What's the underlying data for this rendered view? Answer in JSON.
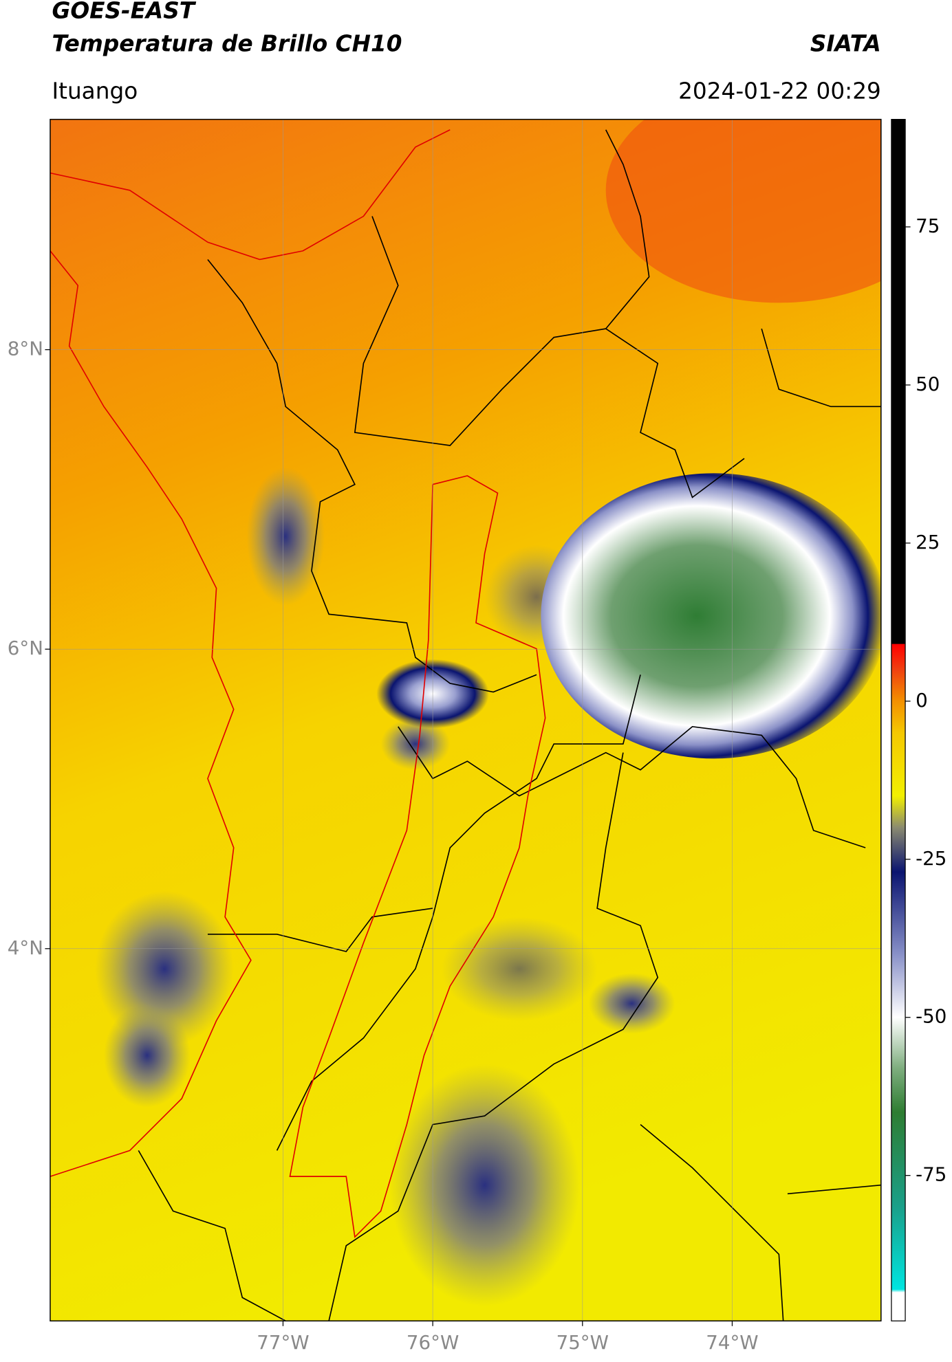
{
  "header": {
    "title": "GOES-EAST",
    "subtitle": "Temperatura de Brillo CH10",
    "source": "SIATA",
    "location": "Ituango",
    "datetime": "2024-01-22 00:29"
  },
  "map": {
    "xlim": [
      -78.555,
      -73.006
    ],
    "ylim": [
      1.514,
      9.538
    ],
    "xticks": [
      {
        "value": -77,
        "label": "77°W"
      },
      {
        "value": -76,
        "label": "76°W"
      },
      {
        "value": -75,
        "label": "75°W"
      },
      {
        "value": -74,
        "label": "74°W"
      }
    ],
    "yticks": [
      {
        "value": 8,
        "label": "8°N"
      },
      {
        "value": 6,
        "label": "6°N"
      },
      {
        "value": 4,
        "label": "4°N"
      }
    ],
    "grid": true
  },
  "colorbar": {
    "lim": [
      -98,
      92
    ],
    "ticks": [
      75,
      50,
      25,
      0,
      -25,
      -50,
      -75
    ],
    "stops": [
      {
        "value": -98,
        "color": "#ffffff"
      },
      {
        "value": -93.5,
        "color": "#ffffff"
      },
      {
        "value": -93,
        "color": "#00e5e0"
      },
      {
        "value": -80,
        "color": "#1aa08a"
      },
      {
        "value": -65,
        "color": "#2e7d32"
      },
      {
        "value": -58,
        "color": "#7fae7f"
      },
      {
        "value": -50,
        "color": "#ffffff"
      },
      {
        "value": -40,
        "color": "#8890c8"
      },
      {
        "value": -27,
        "color": "#0a1470"
      },
      {
        "value": -20,
        "color": "#8a8a70"
      },
      {
        "value": -15,
        "color": "#f2f000"
      },
      {
        "value": -5,
        "color": "#f5c800"
      },
      {
        "value": 0,
        "color": "#f39000"
      },
      {
        "value": 5,
        "color": "#f04010"
      },
      {
        "value": 9,
        "color": "#ff0000"
      },
      {
        "value": 9.1,
        "color": "#000000"
      },
      {
        "value": 92,
        "color": "#000000"
      }
    ]
  }
}
